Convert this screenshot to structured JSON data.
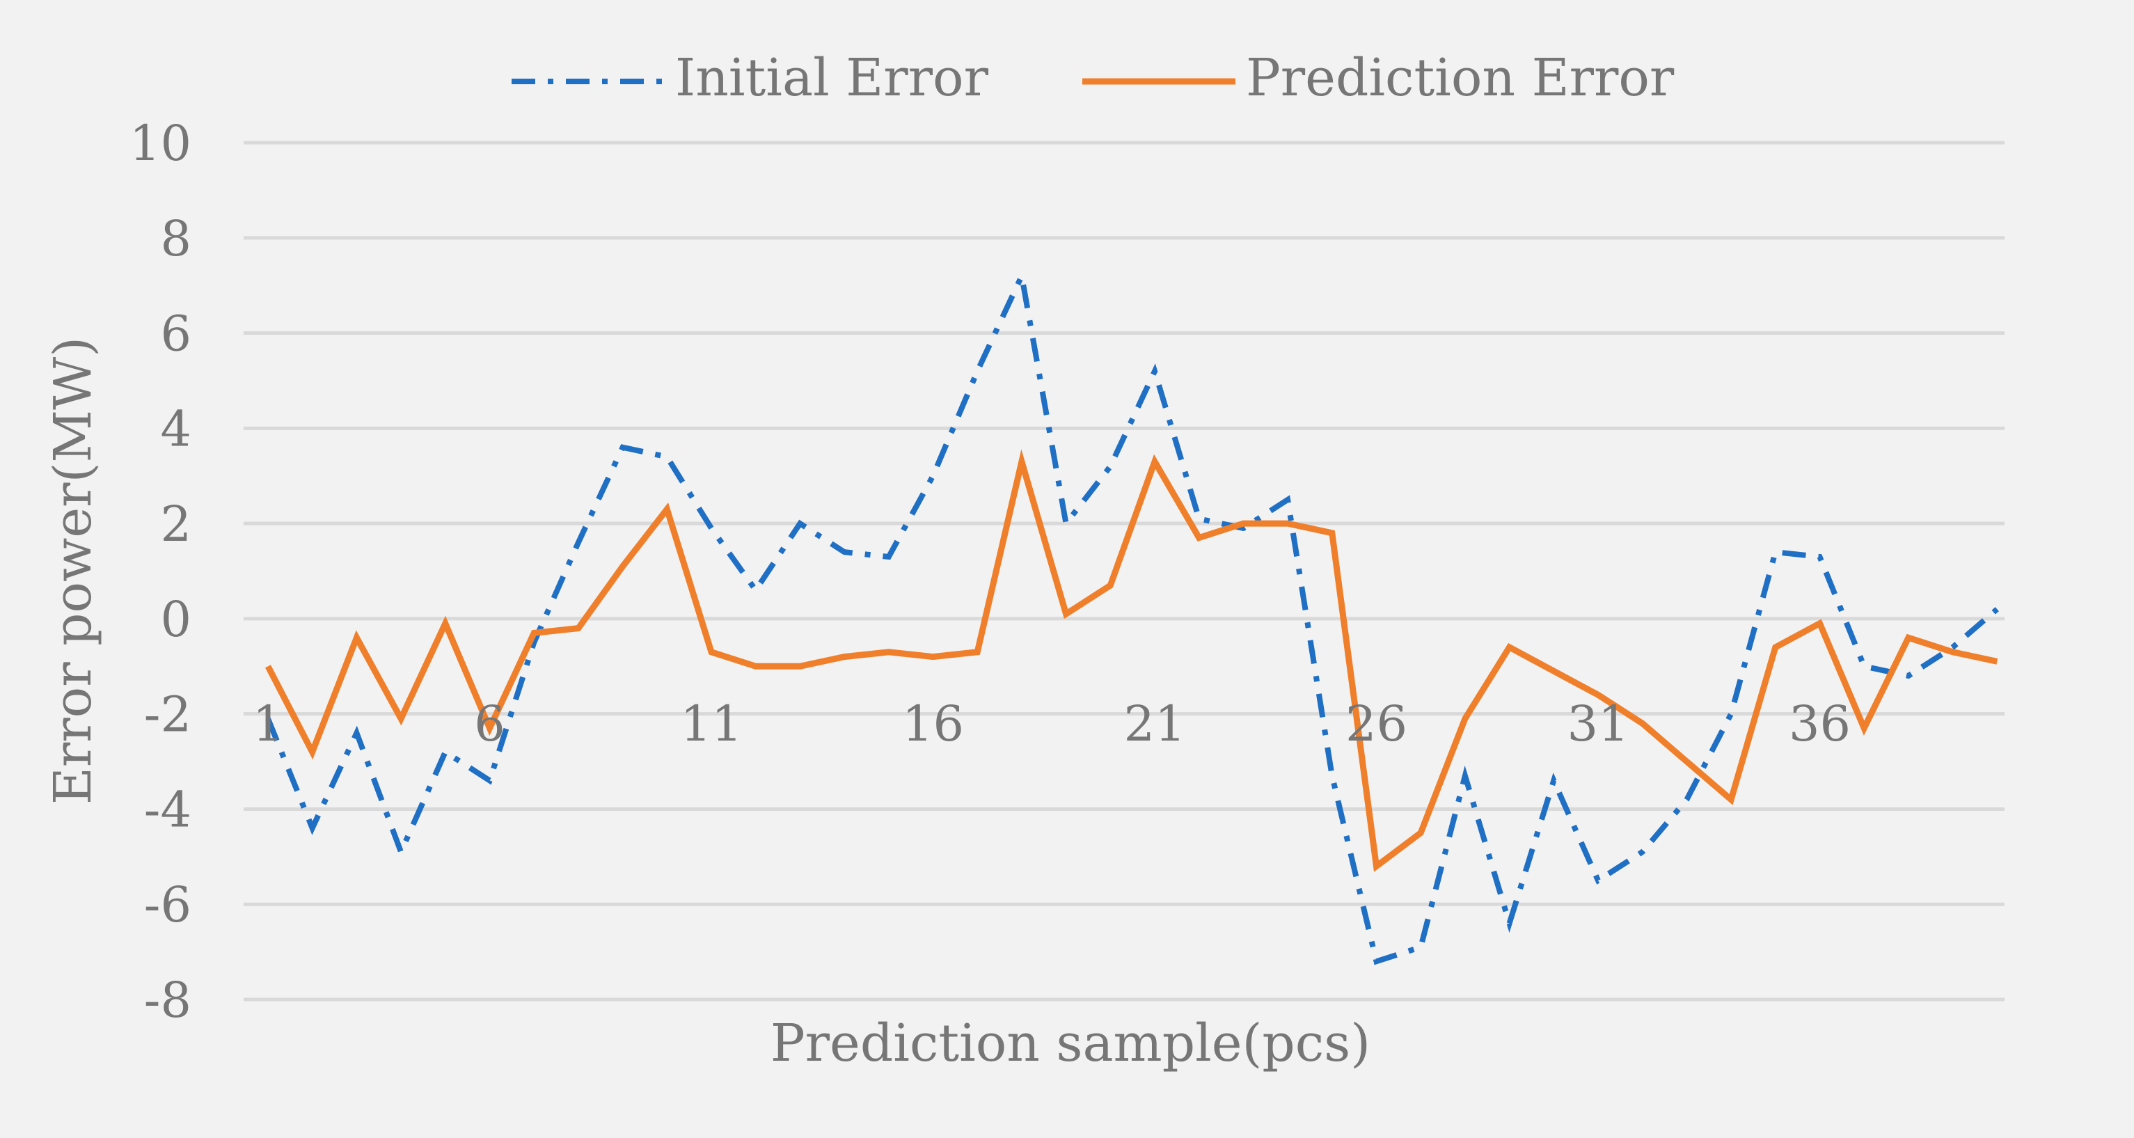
{
  "chart_data": {
    "type": "line",
    "xlabel": "Prediction sample(pcs)",
    "ylabel": "Error power(MW)",
    "ylim": [
      -8,
      10
    ],
    "yticks": [
      10,
      8,
      6,
      4,
      2,
      0,
      -2,
      -4,
      -6,
      -8
    ],
    "x": [
      1,
      2,
      3,
      4,
      5,
      6,
      7,
      8,
      9,
      10,
      11,
      12,
      13,
      14,
      15,
      16,
      17,
      18,
      19,
      20,
      21,
      22,
      23,
      24,
      25,
      26,
      27,
      28,
      29,
      30,
      31,
      32,
      33,
      34,
      35,
      36,
      37,
      38,
      39,
      40
    ],
    "x_tick_labels": [
      "1",
      "6",
      "11",
      "16",
      "21",
      "26",
      "31",
      "36"
    ],
    "x_tick_values": [
      1,
      6,
      11,
      16,
      21,
      26,
      31,
      36
    ],
    "grid": true,
    "legend_position": "top-center",
    "background_color": "#f2f2f2",
    "gridline_color": "#d9d9d9",
    "series": [
      {
        "name": "Initial Error",
        "color": "#1f6fc5",
        "style": "dash-dot",
        "values": [
          -2.1,
          -4.4,
          -2.4,
          -4.9,
          -2.8,
          -3.4,
          -0.5,
          1.6,
          3.6,
          3.4,
          1.9,
          0.6,
          2.0,
          1.4,
          1.3,
          3.0,
          5.2,
          7.2,
          2.0,
          3.2,
          5.2,
          2.1,
          1.9,
          2.5,
          -3.3,
          -7.2,
          -6.9,
          -3.3,
          -6.4,
          -3.4,
          -5.5,
          -4.9,
          -3.8,
          -2.0,
          1.4,
          1.3,
          -1.0,
          -1.2,
          -0.6,
          0.2
        ]
      },
      {
        "name": "Prediction Error",
        "color": "#f07f2b",
        "style": "solid",
        "values": [
          -1.0,
          -2.8,
          -0.4,
          -2.1,
          -0.1,
          -2.3,
          -0.3,
          -0.2,
          1.1,
          2.3,
          -0.7,
          -1.0,
          -1.0,
          -0.8,
          -0.7,
          -0.8,
          -0.7,
          3.3,
          0.1,
          0.7,
          3.3,
          1.7,
          2.0,
          2.0,
          1.8,
          -5.2,
          -4.5,
          -2.1,
          -0.6,
          -1.1,
          -1.6,
          -2.2,
          -3.0,
          -3.8,
          -0.6,
          -0.1,
          -2.3,
          -0.4,
          -0.7,
          -0.9
        ]
      }
    ]
  }
}
